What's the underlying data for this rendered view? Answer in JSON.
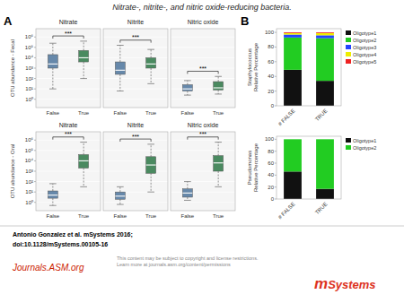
{
  "title": "Nitrate-, nitrite-, and nitric oxide-reducing bacteria.",
  "annotations": [
    "A",
    "B",
    "Antonio Gonzalez et al. mSystems 2016;",
    "doi:10.1128/mSystems.00105-16",
    "Journals.ASM.org",
    "This content may be subject to copyright and license restrictions.\nLearn more at journals.asm.org/content/permissions",
    "m",
    "Systems"
  ],
  "chart_data": [
    {
      "type": "box",
      "title": "Nitrate",
      "ylabel": "OTU abundance - Fecal",
      "categories": [
        "False",
        "True"
      ],
      "colors": [
        "#6688aa",
        "#4a8a60"
      ],
      "boxes": [
        {
          "low": 1.0,
          "q1": 3.0,
          "median": 3.4,
          "q3": 4.3,
          "high": 5.4
        },
        {
          "low": 2.0,
          "q1": 3.6,
          "median": 4.0,
          "q3": 4.7,
          "high": 5.6
        }
      ],
      "annotations": [
        "***"
      ],
      "ylim": [
        -0.8,
        6.8
      ],
      "yticks": [
        {
          "value": 0,
          "label": "10⁰"
        },
        {
          "value": 1,
          "label": "10¹"
        },
        {
          "value": 2,
          "label": "10²"
        },
        {
          "value": 3,
          "label": "10³"
        },
        {
          "value": 4,
          "label": "10⁴"
        },
        {
          "value": 5,
          "label": "10⁵"
        },
        {
          "value": 6,
          "label": "10⁶"
        }
      ],
      "grid": true
    },
    {
      "type": "box",
      "title": "Nitrite",
      "categories": [
        "False",
        "True"
      ],
      "colors": [
        "#6688aa",
        "#4a8a60"
      ],
      "boxes": [
        {
          "low": 0.8,
          "q1": 2.4,
          "median": 2.8,
          "q3": 3.6,
          "high": 5.2
        },
        {
          "low": 1.5,
          "q1": 3.0,
          "median": 3.4,
          "q3": 4.0,
          "high": 4.8
        }
      ],
      "annotations": [
        "***"
      ],
      "ylim": [
        -0.8,
        6.8
      ],
      "yticks": [
        {
          "value": 0,
          "label": "10⁰"
        },
        {
          "value": 1,
          "label": "10¹"
        },
        {
          "value": 2,
          "label": "10²"
        },
        {
          "value": 3,
          "label": "10³"
        },
        {
          "value": 4,
          "label": "10⁴"
        },
        {
          "value": 5,
          "label": "10⁵"
        },
        {
          "value": 6,
          "label": "10⁶"
        }
      ],
      "grid": true,
      "tick_labels": "x"
    },
    {
      "type": "box",
      "title": "Nitric oxide",
      "categories": [
        "False",
        "True"
      ],
      "colors": [
        "#6688aa",
        "#4a8a60"
      ],
      "boxes": [
        {
          "low": 0.4,
          "q1": 0.8,
          "median": 1.0,
          "q3": 1.4,
          "high": 1.8
        },
        {
          "low": 0.5,
          "q1": 0.9,
          "median": 1.1,
          "q3": 1.7,
          "high": 2.2
        }
      ],
      "annotations": [
        "***"
      ],
      "ylim": [
        -0.8,
        6.8
      ],
      "yticks": [
        {
          "value": 0,
          "label": "10⁰"
        },
        {
          "value": 1,
          "label": "10¹"
        },
        {
          "value": 2,
          "label": "10²"
        },
        {
          "value": 3,
          "label": "10³"
        },
        {
          "value": 4,
          "label": "10⁴"
        },
        {
          "value": 5,
          "label": "10⁵"
        },
        {
          "value": 6,
          "label": "10⁶"
        }
      ],
      "grid": true,
      "tick_labels": "x"
    },
    {
      "type": "box",
      "title": "Nitrate",
      "ylabel": "OTU abundance - Oral",
      "categories": [
        "False",
        "True"
      ],
      "colors": [
        "#6688aa",
        "#4a8a60"
      ],
      "boxes": [
        {
          "low": -0.3,
          "q1": 0.4,
          "median": 0.7,
          "q3": 1.1,
          "high": 1.8
        },
        {
          "low": 1.5,
          "q1": 3.3,
          "median": 4.0,
          "q3": 4.6,
          "high": 5.8
        }
      ],
      "annotations": [
        "***"
      ],
      "ylim": [
        -0.8,
        6.8
      ],
      "yticks": [
        {
          "value": 0,
          "label": "10⁰"
        },
        {
          "value": 1,
          "label": "10¹"
        },
        {
          "value": 2,
          "label": "10²"
        },
        {
          "value": 3,
          "label": "10³"
        },
        {
          "value": 4,
          "label": "10⁴"
        },
        {
          "value": 5,
          "label": "10⁵"
        },
        {
          "value": 6,
          "label": "10⁶"
        }
      ],
      "grid": true
    },
    {
      "type": "box",
      "title": "Nitrite",
      "categories": [
        "False",
        "True"
      ],
      "colors": [
        "#6688aa",
        "#4a8a60"
      ],
      "boxes": [
        {
          "low": -0.2,
          "q1": 0.3,
          "median": 0.6,
          "q3": 1.0,
          "high": 1.5
        },
        {
          "low": 1.0,
          "q1": 2.8,
          "median": 3.6,
          "q3": 4.4,
          "high": 5.6
        }
      ],
      "annotations": [
        "***"
      ],
      "ylim": [
        -0.8,
        6.8
      ],
      "yticks": [
        {
          "value": 0,
          "label": "10⁰"
        },
        {
          "value": 1,
          "label": "10¹"
        },
        {
          "value": 2,
          "label": "10²"
        },
        {
          "value": 3,
          "label": "10³"
        },
        {
          "value": 4,
          "label": "10⁴"
        },
        {
          "value": 5,
          "label": "10⁵"
        },
        {
          "value": 6,
          "label": "10⁶"
        }
      ],
      "grid": true,
      "tick_labels": "x"
    },
    {
      "type": "box",
      "title": "Nitric oxide",
      "categories": [
        "False",
        "True"
      ],
      "colors": [
        "#6688aa",
        "#4a8a60"
      ],
      "boxes": [
        {
          "low": 0.2,
          "q1": 0.5,
          "median": 0.9,
          "q3": 1.3,
          "high": 2.0
        },
        {
          "low": 1.5,
          "q1": 3.0,
          "median": 3.8,
          "q3": 4.5,
          "high": 5.8
        }
      ],
      "annotations": [
        "***"
      ],
      "ylim": [
        -0.8,
        6.8
      ],
      "yticks": [
        {
          "value": 0,
          "label": "10⁰"
        },
        {
          "value": 1,
          "label": "10¹"
        },
        {
          "value": 2,
          "label": "10²"
        },
        {
          "value": 3,
          "label": "10³"
        },
        {
          "value": 4,
          "label": "10⁴"
        },
        {
          "value": 5,
          "label": "10⁵"
        },
        {
          "value": 6,
          "label": "10⁶"
        }
      ],
      "grid": true,
      "tick_labels": "x"
    },
    {
      "type": "bar",
      "stacked": true,
      "ylabel": "Staphylococcus\nRelative Percentage",
      "categories": [
        "# FALSE",
        "TRUE"
      ],
      "series": [
        {
          "name": "Oligotype1",
          "color": "#111111",
          "values": [
            49,
            34
          ]
        },
        {
          "name": "Oligotype2",
          "color": "#22cc22",
          "values": [
            44,
            58
          ]
        },
        {
          "name": "Oligotype3",
          "color": "#2244ff",
          "values": [
            4,
            4
          ]
        },
        {
          "name": "Oligotype4",
          "color": "#eeee00",
          "values": [
            2,
            3
          ]
        },
        {
          "name": "Oligotype5",
          "color": "#ee2222",
          "values": [
            1,
            1
          ]
        }
      ],
      "ylim": [
        0,
        105
      ],
      "yticks": [
        0,
        20,
        40,
        60,
        80,
        100
      ],
      "legend": "right"
    },
    {
      "type": "bar",
      "stacked": true,
      "ylabel": "Pseudomonas\nRelative Percentage",
      "categories": [
        "# FALSE",
        "TRUE"
      ],
      "series": [
        {
          "name": "Oligotype1",
          "color": "#111111",
          "values": [
            46,
            17
          ]
        },
        {
          "name": "Oligotype2",
          "color": "#22cc22",
          "values": [
            54,
            83
          ]
        }
      ],
      "ylim": [
        0,
        105
      ],
      "yticks": [
        0,
        20,
        40,
        60,
        80,
        100
      ],
      "legend": "right"
    }
  ]
}
